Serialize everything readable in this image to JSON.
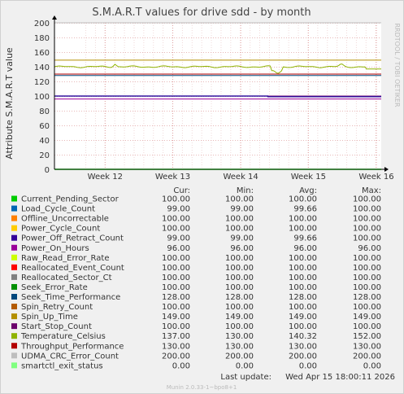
{
  "chart_data": {
    "type": "line",
    "title": "S.M.A.R.T values for drive sdd - by month",
    "ylabel": "Attribute S.M.A.R.T value",
    "xlabel": "",
    "side_label": "RRDTOOL / TOBI OETIKER",
    "ylim": [
      0,
      200
    ],
    "y_ticks": [
      0,
      20,
      40,
      60,
      80,
      100,
      120,
      140,
      160,
      180,
      200
    ],
    "x_ticks": [
      "Week 12",
      "Week 13",
      "Week 14",
      "Week 15",
      "Week 16"
    ],
    "grid": true,
    "legend_position": "bottom",
    "table_headers": [
      "Cur:",
      "Min:",
      "Avg:",
      "Max:"
    ],
    "series": [
      {
        "name": "Current_Pending_Sector",
        "color": "#00cc00",
        "cur": "100.00",
        "min": "100.00",
        "avg": "100.00",
        "max": "100.00"
      },
      {
        "name": "Load_Cycle_Count",
        "color": "#0066b3",
        "cur": "99.00",
        "min": "99.00",
        "avg": "99.66",
        "max": "100.00"
      },
      {
        "name": "Offline_Uncorrectable",
        "color": "#ff8000",
        "cur": "100.00",
        "min": "100.00",
        "avg": "100.00",
        "max": "100.00"
      },
      {
        "name": "Power_Cycle_Count",
        "color": "#ffcc00",
        "cur": "100.00",
        "min": "100.00",
        "avg": "100.00",
        "max": "100.00"
      },
      {
        "name": "Power_Off_Retract_Count",
        "color": "#330099",
        "cur": "99.00",
        "min": "99.00",
        "avg": "99.66",
        "max": "100.00"
      },
      {
        "name": "Power_On_Hours",
        "color": "#990099",
        "cur": "96.00",
        "min": "96.00",
        "avg": "96.00",
        "max": "96.00"
      },
      {
        "name": "Raw_Read_Error_Rate",
        "color": "#ccff00",
        "cur": "100.00",
        "min": "100.00",
        "avg": "100.00",
        "max": "100.00"
      },
      {
        "name": "Reallocated_Event_Count",
        "color": "#ff0000",
        "cur": "100.00",
        "min": "100.00",
        "avg": "100.00",
        "max": "100.00"
      },
      {
        "name": "Reallocated_Sector_Ct",
        "color": "#808080",
        "cur": "100.00",
        "min": "100.00",
        "avg": "100.00",
        "max": "100.00"
      },
      {
        "name": "Seek_Error_Rate",
        "color": "#008f00",
        "cur": "100.00",
        "min": "100.00",
        "avg": "100.00",
        "max": "100.00"
      },
      {
        "name": "Seek_Time_Performance",
        "color": "#00487d",
        "cur": "128.00",
        "min": "128.00",
        "avg": "128.00",
        "max": "128.00"
      },
      {
        "name": "Spin_Retry_Count",
        "color": "#b35a00",
        "cur": "100.00",
        "min": "100.00",
        "avg": "100.00",
        "max": "100.00"
      },
      {
        "name": "Spin_Up_Time",
        "color": "#b38f00",
        "cur": "149.00",
        "min": "149.00",
        "avg": "149.00",
        "max": "149.00"
      },
      {
        "name": "Start_Stop_Count",
        "color": "#6b006b",
        "cur": "100.00",
        "min": "100.00",
        "avg": "100.00",
        "max": "100.00"
      },
      {
        "name": "Temperature_Celsius",
        "color": "#8fb300",
        "cur": "137.00",
        "min": "130.00",
        "avg": "140.32",
        "max": "152.00"
      },
      {
        "name": "Throughput_Performance",
        "color": "#b30000",
        "cur": "130.00",
        "min": "130.00",
        "avg": "130.00",
        "max": "130.00"
      },
      {
        "name": "UDMA_CRC_Error_Count",
        "color": "#bebebe",
        "cur": "200.00",
        "min": "200.00",
        "avg": "200.00",
        "max": "200.00"
      },
      {
        "name": "smartctl_exit_status",
        "color": "#80ff80",
        "cur": "0.00",
        "min": "0.00",
        "avg": "0.00",
        "max": "0.00"
      }
    ],
    "last_update_label": "Last update:",
    "last_update": "Wed Apr 15 18:00:11 2026",
    "footer": "Munin 2.0.33-1~bpo8+1"
  }
}
